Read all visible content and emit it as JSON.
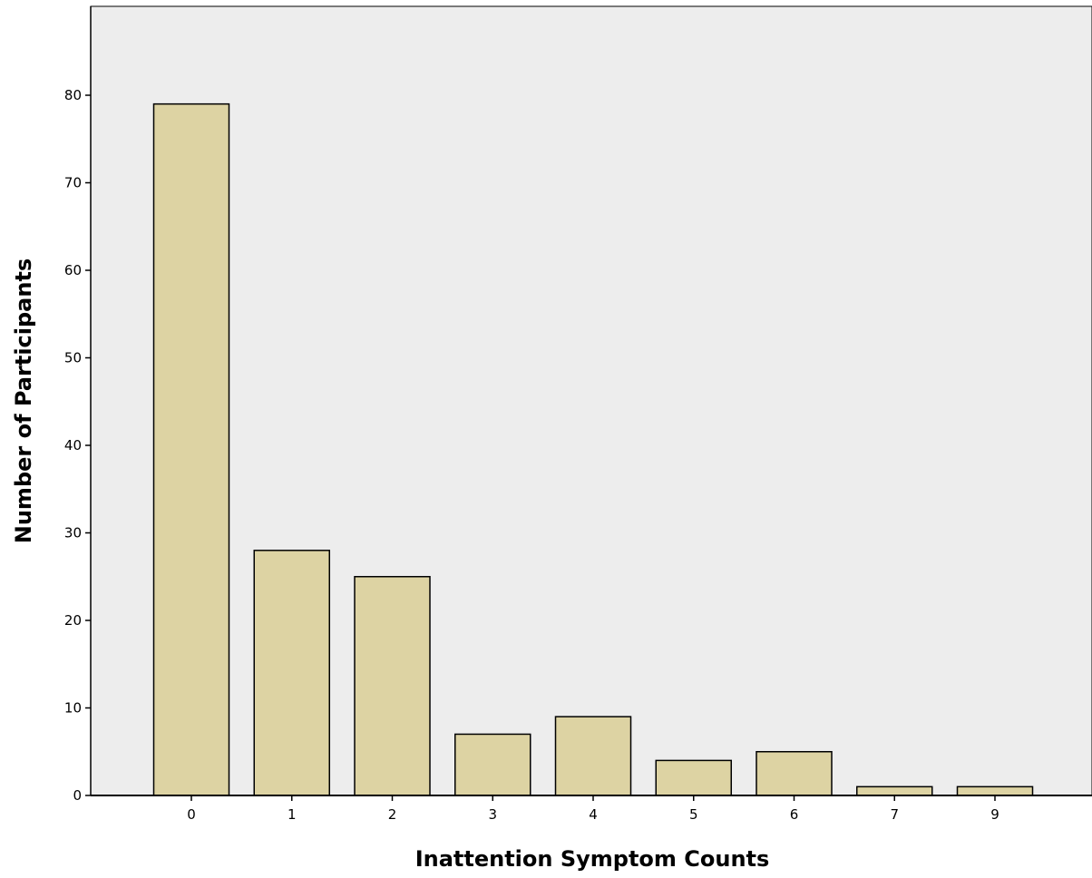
{
  "chart_data": {
    "type": "bar",
    "title": "",
    "xlabel": "Inattention Symptom Counts",
    "ylabel": "Number of Participants",
    "categories": [
      "0",
      "1",
      "2",
      "3",
      "4",
      "5",
      "6",
      "7",
      "9"
    ],
    "values": [
      79,
      28,
      25,
      7,
      9,
      4,
      5,
      1,
      1
    ],
    "ylim": [
      0,
      80
    ],
    "yticks": [
      0,
      10,
      20,
      30,
      40,
      50,
      60,
      70,
      80
    ],
    "grid": false,
    "legend": "none",
    "colors": {
      "plot_background": "#ededed",
      "bar_fill": "#ddd3a3",
      "bar_stroke": "#000000",
      "axis": "#000000"
    }
  }
}
